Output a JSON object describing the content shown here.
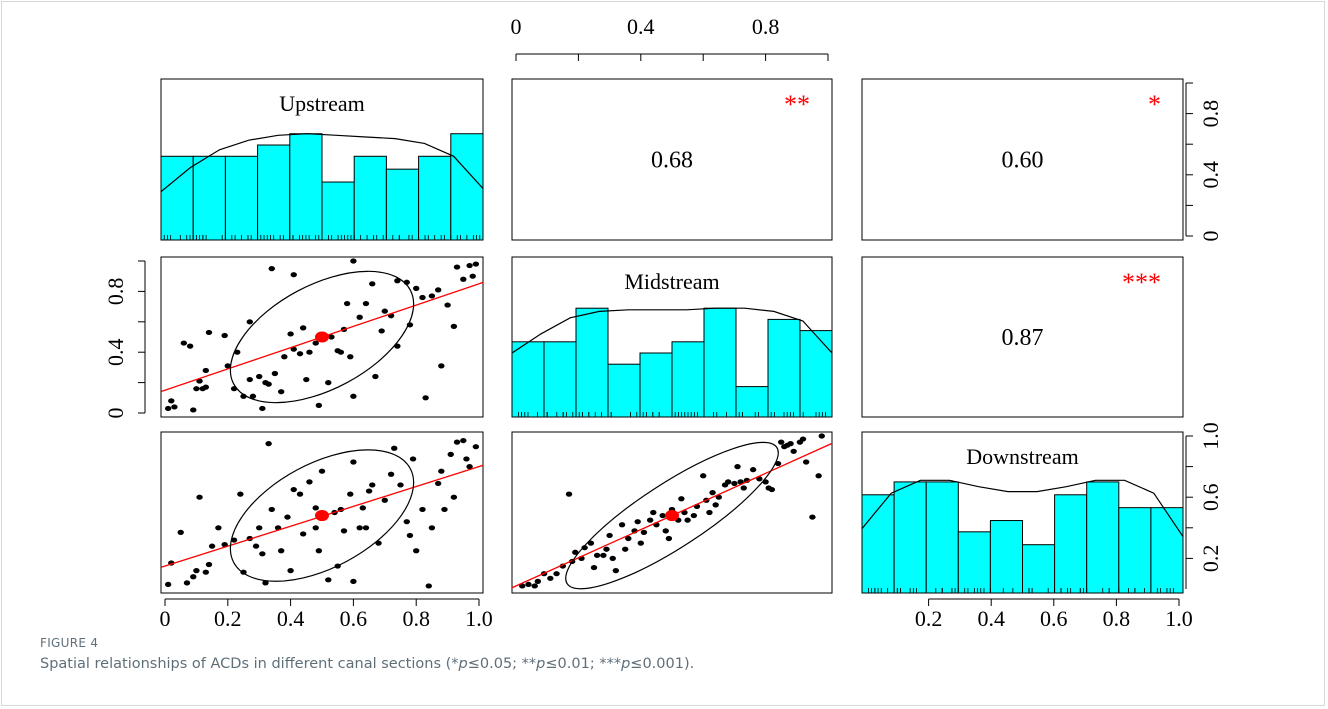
{
  "chart_data": {
    "type": "scatter",
    "variables": [
      "Upstream",
      "Midstream",
      "Downstream"
    ],
    "correlations": [
      {
        "row": 0,
        "col": 1,
        "value": "0.68",
        "stars": "**"
      },
      {
        "row": 0,
        "col": 2,
        "value": "0.60",
        "stars": "*"
      },
      {
        "row": 1,
        "col": 2,
        "value": "0.87",
        "stars": "***"
      }
    ],
    "histograms": [
      {
        "variable": "Upstream",
        "bins": [
          0,
          0.1,
          0.2,
          0.3,
          0.4,
          0.5,
          0.6,
          0.7,
          0.8,
          0.9,
          1.0
        ],
        "heights": [
          0.52,
          0.52,
          0.52,
          0.59,
          0.66,
          0.36,
          0.52,
          0.44,
          0.52,
          0.66
        ],
        "density": [
          0.3,
          0.45,
          0.56,
          0.62,
          0.65,
          0.66,
          0.65,
          0.64,
          0.63,
          0.6,
          0.52,
          0.32
        ]
      },
      {
        "variable": "Midstream",
        "bins": [
          0,
          0.1,
          0.2,
          0.3,
          0.4,
          0.5,
          0.6,
          0.7,
          0.8,
          0.9,
          1.0
        ],
        "heights": [
          0.47,
          0.47,
          0.68,
          0.33,
          0.4,
          0.47,
          0.68,
          0.19,
          0.61,
          0.54
        ],
        "density": [
          0.4,
          0.52,
          0.62,
          0.66,
          0.67,
          0.67,
          0.67,
          0.68,
          0.68,
          0.66,
          0.6,
          0.4
        ]
      },
      {
        "variable": "Downstream",
        "bins": [
          0,
          0.1,
          0.2,
          0.3,
          0.4,
          0.5,
          0.6,
          0.7,
          0.8,
          0.9,
          1.0
        ],
        "heights": [
          0.61,
          0.69,
          0.69,
          0.38,
          0.45,
          0.3,
          0.61,
          0.69,
          0.53,
          0.53
        ],
        "density": [
          0.4,
          0.62,
          0.7,
          0.7,
          0.66,
          0.63,
          0.63,
          0.66,
          0.7,
          0.7,
          0.62,
          0.35
        ]
      }
    ],
    "scatter": [
      {
        "xvar": "Upstream",
        "yvar": "Midstream",
        "center": [
          0.5,
          0.5
        ],
        "fit": [
          [
            0,
            0.15
          ],
          [
            1,
            0.85
          ]
        ],
        "points": [
          [
            0.02,
            0.08
          ],
          [
            0.01,
            0.03
          ],
          [
            0.03,
            0.04
          ],
          [
            0.09,
            0.02
          ],
          [
            0.1,
            0.16
          ],
          [
            0.12,
            0.16
          ],
          [
            0.13,
            0.17
          ],
          [
            0.11,
            0.21
          ],
          [
            0.13,
            0.28
          ],
          [
            0.06,
            0.46
          ],
          [
            0.08,
            0.44
          ],
          [
            0.14,
            0.53
          ],
          [
            0.2,
            0.31
          ],
          [
            0.22,
            0.16
          ],
          [
            0.23,
            0.4
          ],
          [
            0.25,
            0.11
          ],
          [
            0.27,
            0.22
          ],
          [
            0.28,
            0.11
          ],
          [
            0.3,
            0.24
          ],
          [
            0.32,
            0.2
          ],
          [
            0.31,
            0.03
          ],
          [
            0.33,
            0.19
          ],
          [
            0.35,
            0.26
          ],
          [
            0.37,
            0.14
          ],
          [
            0.38,
            0.37
          ],
          [
            0.41,
            0.42
          ],
          [
            0.4,
            0.52
          ],
          [
            0.43,
            0.39
          ],
          [
            0.44,
            0.56
          ],
          [
            0.46,
            0.4
          ],
          [
            0.48,
            0.46
          ],
          [
            0.49,
            0.05
          ],
          [
            0.52,
            0.2
          ],
          [
            0.53,
            0.5
          ],
          [
            0.55,
            0.41
          ],
          [
            0.56,
            0.4
          ],
          [
            0.57,
            0.55
          ],
          [
            0.59,
            0.37
          ],
          [
            0.6,
            0.11
          ],
          [
            0.62,
            0.63
          ],
          [
            0.64,
            0.72
          ],
          [
            0.66,
            0.85
          ],
          [
            0.67,
            0.24
          ],
          [
            0.69,
            0.54
          ],
          [
            0.7,
            0.67
          ],
          [
            0.72,
            0.64
          ],
          [
            0.74,
            0.87
          ],
          [
            0.77,
            0.86
          ],
          [
            0.78,
            0.58
          ],
          [
            0.8,
            0.82
          ],
          [
            0.82,
            0.76
          ],
          [
            0.85,
            0.77
          ],
          [
            0.83,
            0.1
          ],
          [
            0.87,
            0.81
          ],
          [
            0.88,
            0.31
          ],
          [
            0.9,
            0.71
          ],
          [
            0.92,
            0.57
          ],
          [
            0.93,
            0.96
          ],
          [
            0.95,
            0.88
          ],
          [
            0.97,
            0.97
          ],
          [
            0.98,
            0.9
          ],
          [
            0.99,
            0.98
          ],
          [
            0.34,
            0.95
          ],
          [
            0.41,
            0.91
          ],
          [
            0.27,
            0.6
          ],
          [
            0.19,
            0.51
          ],
          [
            0.45,
            0.22
          ],
          [
            0.58,
            0.72
          ],
          [
            0.74,
            0.44
          ],
          [
            0.6,
            1.0
          ]
        ]
      },
      {
        "xvar": "Upstream",
        "yvar": "Downstream",
        "center": [
          0.5,
          0.48
        ],
        "fit": [
          [
            0,
            0.15
          ],
          [
            1,
            0.8
          ]
        ],
        "points": [
          [
            0.01,
            0.03
          ],
          [
            0.02,
            0.17
          ],
          [
            0.05,
            0.37
          ],
          [
            0.07,
            0.04
          ],
          [
            0.09,
            0.08
          ],
          [
            0.1,
            0.12
          ],
          [
            0.11,
            0.6
          ],
          [
            0.13,
            0.11
          ],
          [
            0.14,
            0.16
          ],
          [
            0.15,
            0.28
          ],
          [
            0.17,
            0.4
          ],
          [
            0.19,
            0.29
          ],
          [
            0.22,
            0.32
          ],
          [
            0.24,
            0.62
          ],
          [
            0.25,
            0.11
          ],
          [
            0.27,
            0.33
          ],
          [
            0.29,
            0.28
          ],
          [
            0.3,
            0.4
          ],
          [
            0.31,
            0.23
          ],
          [
            0.32,
            0.04
          ],
          [
            0.34,
            0.52
          ],
          [
            0.36,
            0.4
          ],
          [
            0.37,
            0.25
          ],
          [
            0.39,
            0.47
          ],
          [
            0.4,
            0.12
          ],
          [
            0.41,
            0.65
          ],
          [
            0.43,
            0.62
          ],
          [
            0.44,
            0.36
          ],
          [
            0.46,
            0.7
          ],
          [
            0.48,
            0.4
          ],
          [
            0.48,
            0.53
          ],
          [
            0.49,
            0.25
          ],
          [
            0.5,
            0.77
          ],
          [
            0.52,
            0.06
          ],
          [
            0.54,
            0.5
          ],
          [
            0.55,
            0.15
          ],
          [
            0.56,
            0.52
          ],
          [
            0.57,
            0.38
          ],
          [
            0.59,
            0.62
          ],
          [
            0.6,
            0.05
          ],
          [
            0.62,
            0.4
          ],
          [
            0.63,
            0.53
          ],
          [
            0.64,
            0.4
          ],
          [
            0.65,
            0.64
          ],
          [
            0.66,
            0.68
          ],
          [
            0.68,
            0.3
          ],
          [
            0.7,
            0.58
          ],
          [
            0.72,
            0.75
          ],
          [
            0.73,
            0.92
          ],
          [
            0.75,
            0.68
          ],
          [
            0.77,
            0.44
          ],
          [
            0.78,
            0.35
          ],
          [
            0.79,
            0.85
          ],
          [
            0.8,
            0.25
          ],
          [
            0.82,
            0.52
          ],
          [
            0.84,
            0.02
          ],
          [
            0.85,
            0.4
          ],
          [
            0.87,
            0.69
          ],
          [
            0.88,
            0.77
          ],
          [
            0.89,
            0.52
          ],
          [
            0.91,
            0.88
          ],
          [
            0.92,
            0.6
          ],
          [
            0.93,
            0.96
          ],
          [
            0.95,
            0.97
          ],
          [
            0.96,
            0.85
          ],
          [
            0.97,
            0.8
          ],
          [
            0.99,
            0.93
          ],
          [
            0.33,
            0.95
          ],
          [
            0.6,
            0.83
          ]
        ]
      },
      {
        "xvar": "Midstream",
        "yvar": "Downstream",
        "center": [
          0.5,
          0.48
        ],
        "fit": [
          [
            0,
            0.02
          ],
          [
            1,
            0.94
          ]
        ],
        "points": [
          [
            0.02,
            0.02
          ],
          [
            0.04,
            0.03
          ],
          [
            0.06,
            0.02
          ],
          [
            0.07,
            0.05
          ],
          [
            0.09,
            0.1
          ],
          [
            0.11,
            0.07
          ],
          [
            0.13,
            0.1
          ],
          [
            0.15,
            0.15
          ],
          [
            0.18,
            0.18
          ],
          [
            0.19,
            0.24
          ],
          [
            0.21,
            0.2
          ],
          [
            0.22,
            0.27
          ],
          [
            0.24,
            0.3
          ],
          [
            0.25,
            0.14
          ],
          [
            0.26,
            0.22
          ],
          [
            0.28,
            0.22
          ],
          [
            0.29,
            0.26
          ],
          [
            0.3,
            0.35
          ],
          [
            0.31,
            0.2
          ],
          [
            0.32,
            0.12
          ],
          [
            0.34,
            0.42
          ],
          [
            0.35,
            0.26
          ],
          [
            0.36,
            0.33
          ],
          [
            0.38,
            0.38
          ],
          [
            0.39,
            0.44
          ],
          [
            0.4,
            0.3
          ],
          [
            0.41,
            0.37
          ],
          [
            0.43,
            0.45
          ],
          [
            0.44,
            0.5
          ],
          [
            0.45,
            0.42
          ],
          [
            0.47,
            0.48
          ],
          [
            0.48,
            0.38
          ],
          [
            0.49,
            0.33
          ],
          [
            0.5,
            0.52
          ],
          [
            0.52,
            0.45
          ],
          [
            0.53,
            0.59
          ],
          [
            0.54,
            0.5
          ],
          [
            0.55,
            0.45
          ],
          [
            0.57,
            0.48
          ],
          [
            0.58,
            0.54
          ],
          [
            0.6,
            0.74
          ],
          [
            0.61,
            0.58
          ],
          [
            0.62,
            0.5
          ],
          [
            0.63,
            0.63
          ],
          [
            0.64,
            0.55
          ],
          [
            0.65,
            0.6
          ],
          [
            0.67,
            0.68
          ],
          [
            0.68,
            0.7
          ],
          [
            0.7,
            0.69
          ],
          [
            0.72,
            0.7
          ],
          [
            0.73,
            0.66
          ],
          [
            0.74,
            0.71
          ],
          [
            0.76,
            0.78
          ],
          [
            0.78,
            0.72
          ],
          [
            0.8,
            0.7
          ],
          [
            0.81,
            0.66
          ],
          [
            0.82,
            0.65
          ],
          [
            0.84,
            0.82
          ],
          [
            0.85,
            0.96
          ],
          [
            0.86,
            0.93
          ],
          [
            0.87,
            0.94
          ],
          [
            0.88,
            0.95
          ],
          [
            0.89,
            0.9
          ],
          [
            0.91,
            0.96
          ],
          [
            0.92,
            0.98
          ],
          [
            0.93,
            0.83
          ],
          [
            0.95,
            0.47
          ],
          [
            0.97,
            0.74
          ],
          [
            0.98,
            1.0
          ],
          [
            0.17,
            0.62
          ],
          [
            0.71,
            0.8
          ]
        ]
      }
    ],
    "axes": {
      "top": {
        "ticks": [
          "0",
          "0.4",
          "0.8"
        ]
      },
      "right_top": {
        "ticks": [
          "0",
          "0.4",
          "0.8"
        ]
      },
      "left_middle": {
        "ticks": [
          "0",
          "0.4",
          "0.8"
        ]
      },
      "right_bottom": {
        "ticks": [
          "0.2",
          "0.6",
          "1.0"
        ]
      },
      "bottom_left": {
        "ticks": [
          "0",
          "0.2",
          "0.4",
          "0.6",
          "0.8",
          "1.0"
        ]
      },
      "bottom_right": {
        "ticks": [
          "0.2",
          "0.4",
          "0.6",
          "0.8",
          "1.0"
        ]
      }
    },
    "colors": {
      "bar_fill": "#00ffff",
      "fit_line": "#ff0000",
      "center_point": "#ff0000",
      "stars": "#ff0000",
      "points": "#000000",
      "curve": "#000000"
    }
  },
  "caption": {
    "label": "FIGURE 4",
    "text_parts": [
      "Spatial relationships of ACDs in different canal sections (*",
      "p",
      "≤0.05; **",
      "p",
      "≤0.01; ***",
      "p",
      "≤0.001)."
    ]
  }
}
